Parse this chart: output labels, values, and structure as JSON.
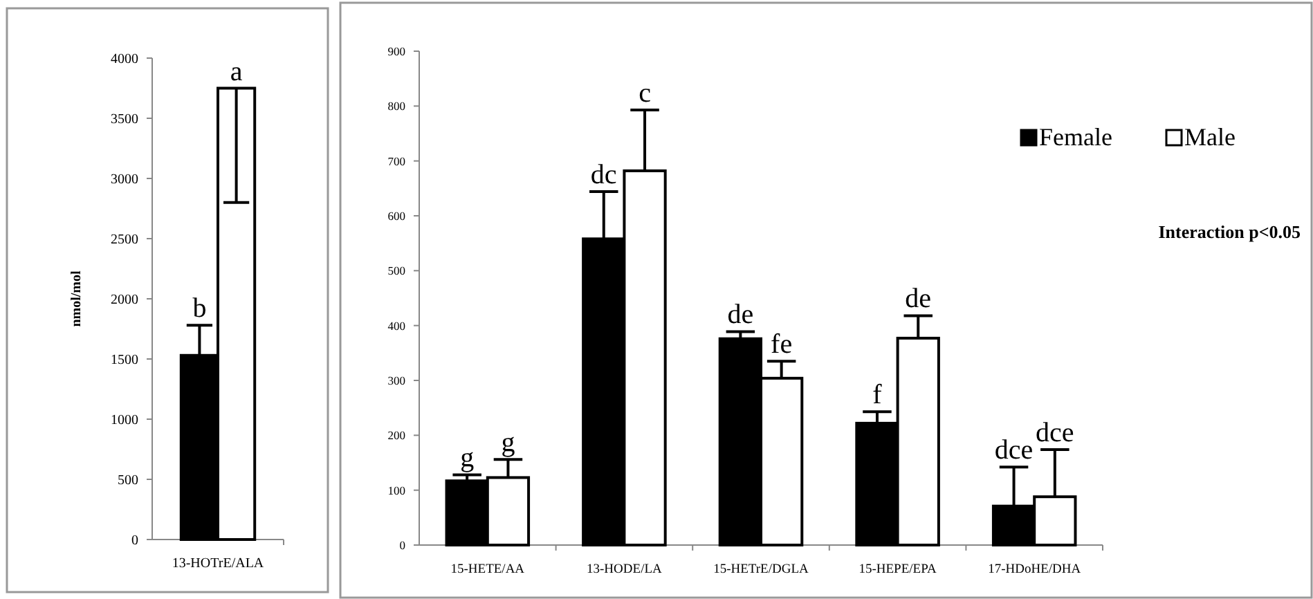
{
  "chart_data": [
    {
      "type": "bar",
      "ylabel": "nmol/mol",
      "categories": [
        "13-HOTrE/ALA"
      ],
      "ylim": [
        0,
        4000
      ],
      "yticks": [
        0,
        500,
        1000,
        1500,
        2000,
        2500,
        3000,
        3500,
        4000
      ],
      "series": [
        {
          "color": "#000000",
          "values": [
            1530
          ],
          "errors": [
            [
              1530,
              1780
            ]
          ],
          "value_labels": [
            "b"
          ]
        },
        {
          "color": "#ffffff",
          "values": [
            3750
          ],
          "errors": [
            [
              2800,
              3750
            ]
          ],
          "value_labels": [
            "a"
          ]
        }
      ]
    },
    {
      "type": "bar",
      "categories": [
        "15-HETE/AA",
        "13-HODE/LA",
        "15-HETrE/DGLA",
        "15-HEPE/EPA",
        "17-HDoHE/DHA"
      ],
      "ylim": [
        0,
        900
      ],
      "yticks": [
        0,
        100,
        200,
        300,
        400,
        500,
        600,
        700,
        800,
        900
      ],
      "legend": "top right",
      "annotations": [
        "Interaction p<0.05"
      ],
      "series": [
        {
          "name": "Female",
          "color": "#000000",
          "values": [
            117,
            558,
            376,
            222,
            71
          ],
          "errors": [
            [
              117,
              128
            ],
            [
              558,
              644
            ],
            [
              376,
              389
            ],
            [
              222,
              243
            ],
            [
              71,
              142
            ]
          ],
          "value_labels": [
            "g",
            "dc",
            "de",
            "f",
            "dce"
          ]
        },
        {
          "name": "Male",
          "color": "#ffffff",
          "values": [
            123,
            682,
            304,
            377,
            88
          ],
          "errors": [
            [
              123,
              156
            ],
            [
              682,
              793
            ],
            [
              304,
              335
            ],
            [
              377,
              418
            ],
            [
              88,
              174
            ]
          ],
          "value_labels": [
            "g",
            "c",
            "fe",
            "de",
            "dce"
          ]
        }
      ]
    }
  ]
}
